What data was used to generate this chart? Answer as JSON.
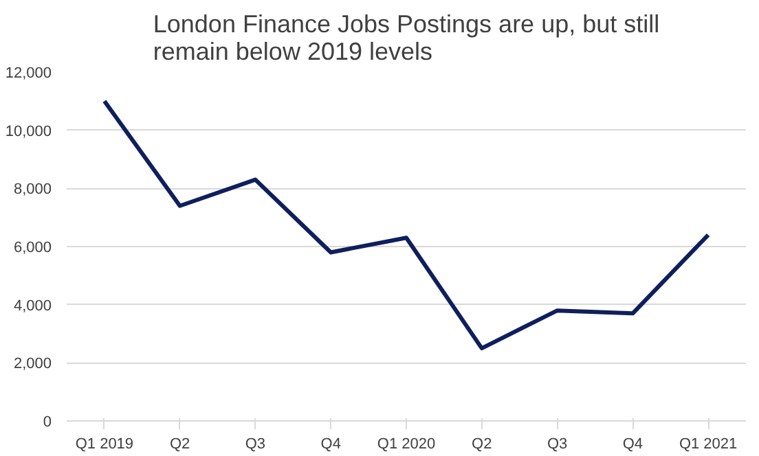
{
  "chart_data": {
    "type": "line",
    "title": "London Finance Jobs Postings are up, but still\nremain below 2019 levels",
    "categories": [
      "Q1 2019",
      "Q2",
      "Q3",
      "Q4",
      "Q1 2020",
      "Q2",
      "Q3",
      "Q4",
      "Q1 2021"
    ],
    "series": [
      {
        "color": "#0f1f5c",
        "values": [
          11000,
          7400,
          8300,
          5800,
          6300,
          2500,
          3800,
          3700,
          6400
        ]
      }
    ],
    "ylim": [
      0,
      12000
    ],
    "yticks": [
      {
        "value": 0,
        "label": "0"
      },
      {
        "value": 2000,
        "label": "2,000"
      },
      {
        "value": 4000,
        "label": "4,000"
      },
      {
        "value": 6000,
        "label": "6,000"
      },
      {
        "value": 8000,
        "label": "8,000"
      },
      {
        "value": 10000,
        "label": "10,000"
      },
      {
        "value": 12000,
        "label": "12,000"
      }
    ],
    "grid": "y",
    "marker": "none",
    "line_style": "solid"
  }
}
